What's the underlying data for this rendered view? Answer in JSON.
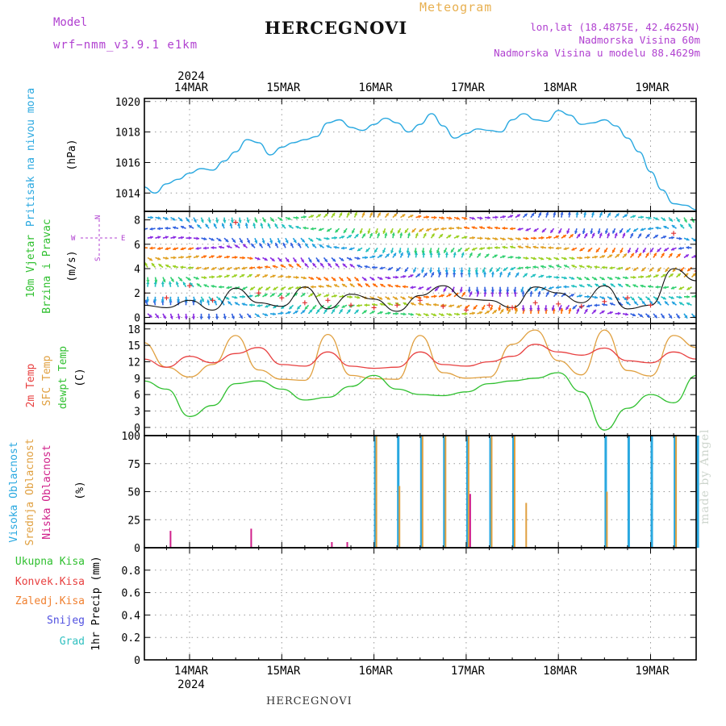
{
  "header": {
    "title": "HERCEGNOVI",
    "model_label": "Model",
    "model_value": "wrf−nmm_v3.9.1  e1km",
    "meteogram_label": "Meteogram",
    "lonlat": "lon,lat (18.4875E, 42.4625N)",
    "elevation": "Nadmorska Visina 60m",
    "model_elevation": "Nadmorska Visina u modelu 88.4629m"
  },
  "footer": {
    "station": "HERCEGNOVI",
    "credit": "made by Angel"
  },
  "colors": {
    "pressure": "#29a8e0",
    "wind_speed": "#111111",
    "gust": "#e03030",
    "temp2m": "#e84040",
    "sfc_temp": "#e0a040",
    "dewpt": "#30c030",
    "cloud_high": "#29a8e0",
    "cloud_mid": "#e0a040",
    "cloud_low": "#d0208a",
    "precip_total": "#30c030",
    "precip_conv": "#e84040",
    "precip_frozen": "#f08030",
    "precip_snow": "#5050e0",
    "precip_graupel": "#30c0c0"
  },
  "chart_data": [
    {
      "type": "line",
      "panel": "pressure",
      "ylabel": [
        "Pritisak na nivou mora",
        "(hPa)"
      ],
      "top_year": "2024",
      "x_ticks": [
        "14MAR",
        "15MAR",
        "16MAR",
        "17MAR",
        "18MAR",
        "19MAR"
      ],
      "xlim_days": [
        0,
        6
      ],
      "ylim": [
        1012.8,
        1020.2
      ],
      "y_ticks": [
        1014,
        1016,
        1018,
        1020
      ],
      "grid": true,
      "series": [
        {
          "color": "#29a8e0",
          "x": [
            "13MAR 12:00",
            "13MAR 15:00",
            "13MAR 18:00",
            "13MAR 21:00",
            "14MAR 00:00",
            "14MAR 03:00",
            "14MAR 06:00",
            "14MAR 09:00",
            "14MAR 12:00",
            "14MAR 15:00",
            "14MAR 18:00",
            "14MAR 21:00",
            "15MAR 00:00",
            "15MAR 03:00",
            "15MAR 06:00",
            "15MAR 09:00",
            "15MAR 12:00",
            "15MAR 15:00",
            "15MAR 18:00",
            "15MAR 21:00",
            "16MAR 00:00",
            "16MAR 03:00",
            "16MAR 06:00",
            "16MAR 09:00",
            "16MAR 12:00",
            "16MAR 15:00",
            "16MAR 18:00",
            "16MAR 21:00",
            "17MAR 00:00",
            "17MAR 03:00",
            "17MAR 06:00",
            "17MAR 09:00",
            "17MAR 12:00",
            "17MAR 15:00",
            "17MAR 18:00",
            "17MAR 21:00",
            "18MAR 00:00",
            "18MAR 03:00",
            "18MAR 06:00",
            "18MAR 09:00",
            "18MAR 12:00",
            "18MAR 15:00",
            "18MAR 18:00",
            "18MAR 21:00",
            "19MAR 00:00",
            "19MAR 03:00",
            "19MAR 06:00",
            "19MAR 09:00",
            "19MAR 12:00"
          ],
          "values": [
            1014.4,
            1014.0,
            1014.6,
            1014.9,
            1015.3,
            1015.6,
            1015.5,
            1016.1,
            1016.7,
            1017.5,
            1017.3,
            1016.5,
            1017.0,
            1017.3,
            1017.5,
            1017.7,
            1018.6,
            1018.8,
            1018.3,
            1018.1,
            1018.5,
            1018.9,
            1018.6,
            1018.0,
            1018.5,
            1019.2,
            1018.4,
            1017.6,
            1017.9,
            1018.2,
            1018.1,
            1018.0,
            1018.8,
            1019.2,
            1018.8,
            1018.7,
            1019.4,
            1019.1,
            1018.5,
            1018.6,
            1018.8,
            1018.4,
            1017.6,
            1016.7,
            1015.4,
            1014.2,
            1013.3,
            1013.2,
            1012.9
          ]
        }
      ]
    },
    {
      "type": "line",
      "panel": "wind",
      "ylabel": [
        "10m Vjetar",
        "Brzina i Pravac",
        "(m/s)"
      ],
      "compass": {
        "n": "N",
        "s": "S",
        "e": "E",
        "w": "W"
      },
      "ylim": [
        -0.5,
        8.7
      ],
      "y_ticks": [
        0,
        2,
        4,
        6,
        8
      ],
      "grid": true,
      "series": [
        {
          "name": "wind",
          "color": "#111111",
          "x": [
            "13MAR 12:00",
            "13MAR 18:00",
            "14MAR 00:00",
            "14MAR 06:00",
            "14MAR 12:00",
            "14MAR 18:00",
            "15MAR 00:00",
            "15MAR 06:00",
            "15MAR 12:00",
            "15MAR 18:00",
            "16MAR 00:00",
            "16MAR 06:00",
            "16MAR 12:00",
            "16MAR 18:00",
            "17MAR 00:00",
            "17MAR 06:00",
            "17MAR 12:00",
            "17MAR 18:00",
            "18MAR 00:00",
            "18MAR 06:00",
            "18MAR 12:00",
            "18MAR 18:00",
            "19MAR 00:00",
            "19MAR 06:00",
            "19MAR 12:00"
          ],
          "values": [
            1.0,
            0.8,
            1.4,
            0.6,
            2.4,
            1.2,
            0.9,
            2.5,
            0.7,
            1.9,
            1.5,
            0.5,
            1.8,
            2.6,
            1.5,
            1.4,
            0.8,
            2.5,
            2.0,
            1.2,
            2.6,
            0.7,
            1.0,
            4.0,
            3.0
          ]
        },
        {
          "name": "gust",
          "color": "#e03030",
          "x": [
            "13MAR 12:00",
            "13MAR 18:00",
            "14MAR 00:00",
            "14MAR 06:00",
            "14MAR 12:00",
            "14MAR 18:00",
            "15MAR 00:00",
            "15MAR 06:00",
            "15MAR 12:00",
            "15MAR 18:00",
            "16MAR 00:00",
            "16MAR 06:00",
            "16MAR 12:00",
            "16MAR 18:00",
            "17MAR 00:00",
            "17MAR 06:00",
            "17MAR 12:00",
            "17MAR 18:00",
            "18MAR 00:00",
            "18MAR 06:00",
            "18MAR 12:00",
            "18MAR 18:00",
            "19MAR 00:00",
            "19MAR 06:00",
            "19MAR 12:00"
          ],
          "values": [
            2.0,
            1.6,
            2.6,
            1.4,
            7.8,
            2.0,
            1.6,
            1.2,
            1.4,
            1.0,
            0.8,
            1.0,
            1.4,
            0.9,
            0.6,
            1.0,
            0.8,
            1.2,
            1.1,
            0.9,
            1.3,
            1.6,
            1.0,
            6.9,
            3.8
          ]
        }
      ]
    },
    {
      "type": "line",
      "panel": "temperature",
      "ylabel": [
        "2m Temp",
        "SFC Temp",
        "dewpt Temp",
        "(C)"
      ],
      "ylim": [
        -1.5,
        19.0
      ],
      "y_ticks": [
        0,
        3,
        6,
        9,
        12,
        15,
        18
      ],
      "grid": true,
      "series": [
        {
          "name": "2m Temp",
          "color": "#e84040",
          "x": [
            "13MAR 12:00",
            "13MAR 18:00",
            "14MAR 00:00",
            "14MAR 06:00",
            "14MAR 12:00",
            "14MAR 18:00",
            "15MAR 00:00",
            "15MAR 06:00",
            "15MAR 12:00",
            "15MAR 18:00",
            "16MAR 00:00",
            "16MAR 06:00",
            "16MAR 12:00",
            "16MAR 18:00",
            "17MAR 00:00",
            "17MAR 06:00",
            "17MAR 12:00",
            "17MAR 18:00",
            "18MAR 00:00",
            "18MAR 06:00",
            "18MAR 12:00",
            "18MAR 18:00",
            "19MAR 00:00",
            "19MAR 06:00",
            "19MAR 12:00"
          ],
          "values": [
            12.5,
            11.0,
            13.0,
            11.8,
            13.5,
            14.6,
            11.5,
            11.2,
            13.8,
            11.2,
            10.8,
            11.0,
            13.8,
            11.5,
            11.2,
            12.0,
            13.0,
            15.2,
            13.8,
            13.2,
            14.5,
            12.2,
            11.8,
            13.8,
            12.5
          ]
        },
        {
          "name": "SFC Temp",
          "color": "#e0a040",
          "x": [
            "13MAR 12:00",
            "13MAR 18:00",
            "14MAR 00:00",
            "14MAR 06:00",
            "14MAR 12:00",
            "14MAR 18:00",
            "15MAR 00:00",
            "15MAR 06:00",
            "15MAR 12:00",
            "15MAR 18:00",
            "16MAR 00:00",
            "16MAR 06:00",
            "16MAR 12:00",
            "16MAR 18:00",
            "17MAR 00:00",
            "17MAR 06:00",
            "17MAR 12:00",
            "17MAR 18:00",
            "18MAR 00:00",
            "18MAR 06:00",
            "18MAR 12:00",
            "18MAR 18:00",
            "19MAR 00:00",
            "19MAR 06:00",
            "19MAR 12:00"
          ],
          "values": [
            15.5,
            11.0,
            9.2,
            11.5,
            16.8,
            10.5,
            8.8,
            8.6,
            17.0,
            9.5,
            8.9,
            8.8,
            16.8,
            10.0,
            9.0,
            9.2,
            15.2,
            17.8,
            12.2,
            9.6,
            17.8,
            10.4,
            9.4,
            16.8,
            14.6
          ]
        },
        {
          "name": "dewpt Temp",
          "color": "#30c030",
          "x": [
            "13MAR 12:00",
            "13MAR 18:00",
            "14MAR 00:00",
            "14MAR 06:00",
            "14MAR 12:00",
            "14MAR 18:00",
            "15MAR 00:00",
            "15MAR 06:00",
            "15MAR 12:00",
            "15MAR 18:00",
            "16MAR 00:00",
            "16MAR 06:00",
            "16MAR 12:00",
            "16MAR 18:00",
            "17MAR 00:00",
            "17MAR 06:00",
            "17MAR 12:00",
            "17MAR 18:00",
            "18MAR 00:00",
            "18MAR 06:00",
            "18MAR 12:00",
            "18MAR 18:00",
            "19MAR 00:00",
            "19MAR 06:00",
            "19MAR 12:00"
          ],
          "values": [
            8.5,
            7.0,
            2.0,
            4.0,
            8.0,
            8.5,
            7.0,
            5.0,
            5.5,
            7.5,
            9.5,
            7.0,
            6.0,
            5.8,
            6.5,
            8.0,
            8.5,
            9.0,
            10.0,
            6.5,
            -0.5,
            3.5,
            6.0,
            4.5,
            9.5
          ]
        }
      ]
    },
    {
      "type": "bar",
      "panel": "clouds",
      "ylabel": [
        "Visoka Oblacnost",
        "Srednja Oblacnost",
        "Niska Oblacnost",
        "(%)"
      ],
      "ylim": [
        0,
        100
      ],
      "y_ticks": [
        0,
        25,
        50,
        75,
        100
      ],
      "grid": true,
      "series": [
        {
          "name": "Visoka Oblacnost",
          "color": "#29a8e0",
          "x": [
            "16MAR 00:00",
            "16MAR 06:00",
            "16MAR 12:00",
            "16MAR 18:00",
            "17MAR 00:00",
            "17MAR 06:00",
            "17MAR 12:00",
            "18MAR 12:00",
            "18MAR 18:00",
            "19MAR 00:00",
            "19MAR 06:00",
            "19MAR 12:00"
          ],
          "values": [
            100,
            100,
            100,
            100,
            100,
            100,
            100,
            100,
            100,
            100,
            100,
            100
          ]
        },
        {
          "name": "Srednja Oblacnost",
          "color": "#e0a040",
          "x": [
            "16MAR 00:00",
            "16MAR 06:00",
            "16MAR 12:00",
            "16MAR 18:00",
            "17MAR 00:00",
            "17MAR 06:00",
            "17MAR 12:00",
            "17MAR 15:00",
            "18MAR 12:00",
            "19MAR 06:00"
          ],
          "values": [
            100,
            55,
            100,
            100,
            100,
            100,
            100,
            40,
            50,
            100
          ]
        },
        {
          "name": "Niska Oblacnost",
          "color": "#d0208a",
          "x": [
            "13MAR 18:00",
            "14MAR 15:00",
            "15MAR 12:00",
            "15MAR 16:00",
            "17MAR 00:00"
          ],
          "values": [
            15,
            17,
            5,
            5,
            48
          ]
        }
      ]
    },
    {
      "type": "bar",
      "panel": "precip",
      "ylabel": [
        "Ukupna Kisa",
        "Konvek.Kisa",
        "Zaledj.Kisa",
        "Snijeg",
        "Grad",
        "1hr Precip (mm)"
      ],
      "ylim": [
        0,
        1.0
      ],
      "y_ticks": [
        0,
        0.2,
        0.4,
        0.6,
        0.8
      ],
      "grid": true,
      "bottom_year": "2024",
      "series": []
    }
  ]
}
